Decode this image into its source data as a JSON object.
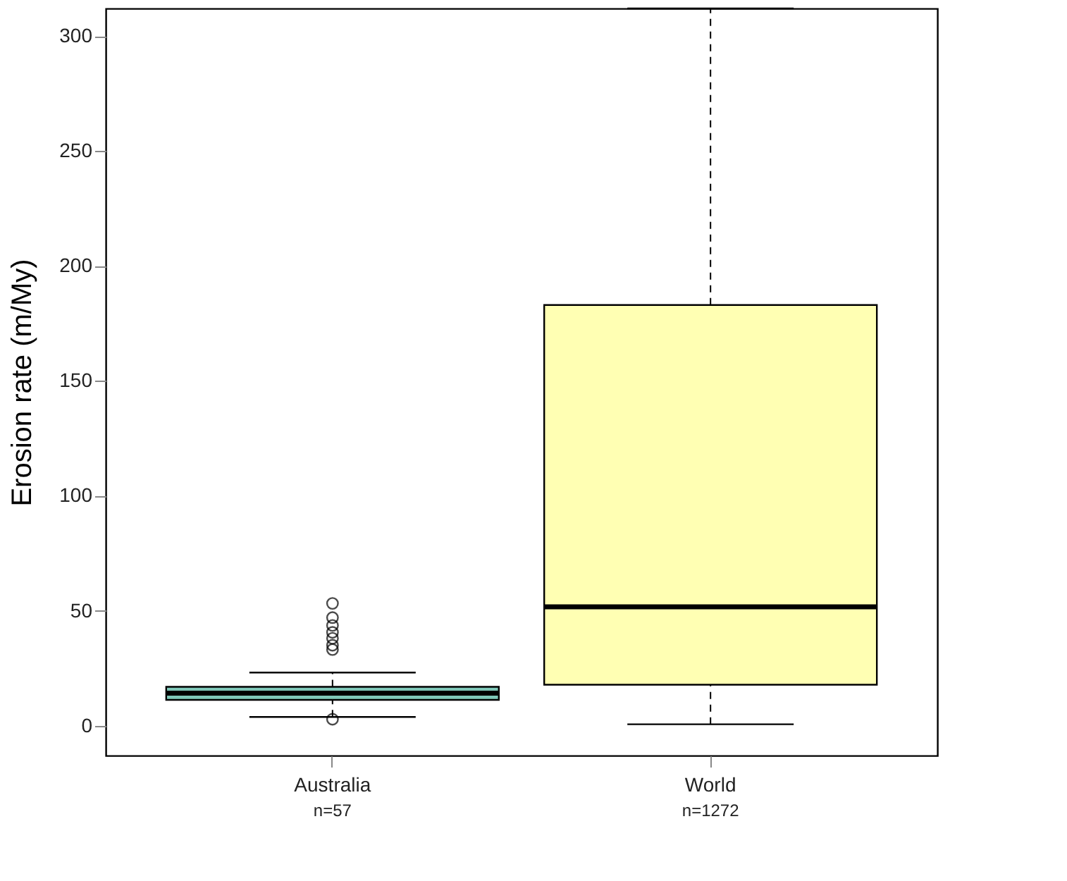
{
  "chart_data": {
    "type": "box",
    "ylabel": "Erosion rate (m/My)",
    "categories": [
      "Australia",
      "World"
    ],
    "colors": [
      "#7fc7b8",
      "#ffffb3"
    ],
    "boxes": [
      {
        "low": 3.8,
        "q1": 11.2,
        "median": 14.1,
        "q3": 16.9,
        "high": 23.1,
        "outliers": [
          2.8,
          33.1,
          35,
          38,
          40.6,
          43.6,
          47,
          53.2
        ]
      },
      {
        "low": 0.6,
        "q1": 17.8,
        "median": 51.7,
        "q3": 183,
        "high": 312
      }
    ],
    "annotations": [
      "n=57",
      "n=1272"
    ],
    "ylim": [
      -13,
      312
    ],
    "yticks": [
      0,
      50,
      100,
      150,
      200,
      250,
      300
    ],
    "grid": false
  }
}
